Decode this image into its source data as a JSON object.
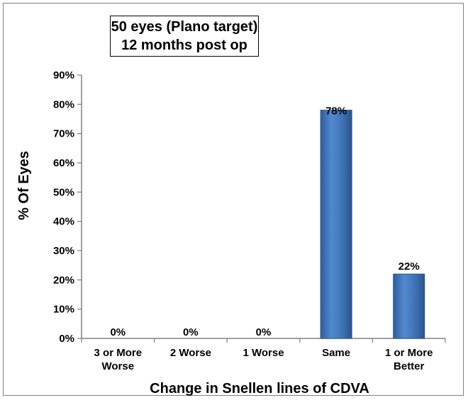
{
  "chart_data": {
    "type": "bar",
    "title_lines": [
      "50 eyes (Plano target)",
      "12 months post op"
    ],
    "categories": [
      [
        "3 or More",
        "Worse"
      ],
      [
        "2 Worse"
      ],
      [
        "1 Worse"
      ],
      [
        "Same"
      ],
      [
        "1 or More",
        "Better"
      ]
    ],
    "values": [
      0,
      0,
      0,
      78,
      22
    ],
    "data_labels": [
      "0%",
      "0%",
      "0%",
      "78%",
      "22%"
    ],
    "xlabel": "Change in Snellen lines of CDVA",
    "ylabel": "% Of Eyes",
    "ylim": [
      0,
      90
    ],
    "yticks": [
      "0%",
      "10%",
      "20%",
      "30%",
      "40%",
      "50%",
      "60%",
      "70%",
      "80%",
      "90%"
    ],
    "grid": false,
    "legend": "none",
    "bar_color": "#3e72b5"
  }
}
